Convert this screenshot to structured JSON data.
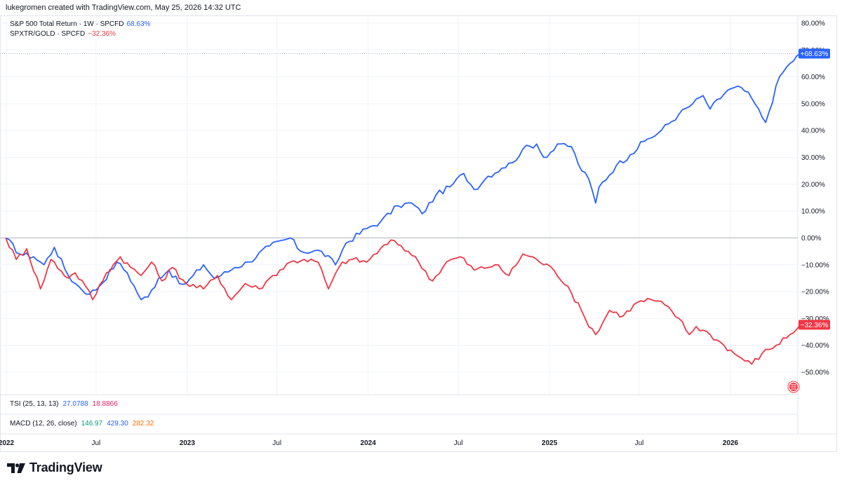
{
  "header": {
    "text": "lukegromen created with TradingView.com, May 25, 2026 14:32 UTC"
  },
  "legend": [
    {
      "label": "S&P 500 Total Return · 1W · SPCFD",
      "value": "68.63%",
      "color": "#2962ff"
    },
    {
      "label": "SPXTR/GOLD · SPCFD",
      "value": "−32.36%",
      "color": "#f23645"
    }
  ],
  "indicators": {
    "tsi": {
      "label": "TSI (25, 13, 13)",
      "value1": "27.0788",
      "value2": "18.8866",
      "color1": "#2962ff",
      "color2": "#e91e63"
    },
    "macd": {
      "label": "MACD (12, 26, close)",
      "value1": "146.97",
      "value2": "429.30",
      "value3": "282.32",
      "color1": "#089981",
      "color2": "#2962ff",
      "color3": "#ff6d00"
    }
  },
  "footer": {
    "brand": "TradingView",
    "logo_icon": "tradingview-logo-icon"
  },
  "price_tags": {
    "spx": "+68.63%",
    "ratio": "−32.36%"
  },
  "chart_data": {
    "type": "line",
    "ylim": [
      -60,
      80
    ],
    "y_ticks": [
      80,
      70,
      60,
      50,
      40,
      30,
      20,
      10,
      0,
      -10,
      -20,
      -30,
      -40,
      -50
    ],
    "y_tick_labels": [
      "80.00%",
      "70.00%",
      "60.00%",
      "50.00%",
      "40.00%",
      "30.00%",
      "20.00%",
      "10.00%",
      "0.00%",
      "−10.00%",
      "−20.00%",
      "−30.00%",
      "−40.00%",
      "−50.00%"
    ],
    "xlim": [
      "2022-01-01",
      "2026-06-15"
    ],
    "x_ticks": [
      "2022-01-01",
      "2022-07-01",
      "2023-01-01",
      "2023-07-01",
      "2024-01-01",
      "2024-07-01",
      "2025-01-01",
      "2025-07-01",
      "2026-01-01"
    ],
    "x_tick_labels": [
      "2022",
      "Jul",
      "2023",
      "Jul",
      "2024",
      "Jul",
      "2025",
      "Jul",
      "2026"
    ],
    "zero_line": true,
    "series": [
      {
        "name": "S&P 500 Total Return · 1W · SPCFD",
        "color": "#2962ff",
        "points": [
          [
            "2021-12-31",
            0
          ],
          [
            "2022-01-28",
            -6
          ],
          [
            "2022-02-25",
            -7
          ],
          [
            "2022-03-18",
            -10
          ],
          [
            "2022-04-08",
            -3.5
          ],
          [
            "2022-05-06",
            -14
          ],
          [
            "2022-05-20",
            -17
          ],
          [
            "2022-06-17",
            -21
          ],
          [
            "2022-07-08",
            -18
          ],
          [
            "2022-08-12",
            -9
          ],
          [
            "2022-09-02",
            -13
          ],
          [
            "2022-09-30",
            -23
          ],
          [
            "2022-10-14",
            -22
          ],
          [
            "2022-11-04",
            -15
          ],
          [
            "2022-11-25",
            -12
          ],
          [
            "2022-12-16",
            -17
          ],
          [
            "2022-12-30",
            -17
          ],
          [
            "2023-02-03",
            -10
          ],
          [
            "2023-02-24",
            -15
          ],
          [
            "2023-03-10",
            -14
          ],
          [
            "2023-04-07",
            -11
          ],
          [
            "2023-05-05",
            -9
          ],
          [
            "2023-06-16",
            -3
          ],
          [
            "2023-07-28",
            0
          ],
          [
            "2023-08-18",
            -5
          ],
          [
            "2023-09-29",
            -5
          ],
          [
            "2023-10-27",
            -10
          ],
          [
            "2023-11-17",
            -2
          ],
          [
            "2023-12-29",
            3.5
          ],
          [
            "2024-01-26",
            6
          ],
          [
            "2024-03-01",
            12
          ],
          [
            "2024-03-29",
            13
          ],
          [
            "2024-04-19",
            9
          ],
          [
            "2024-05-17",
            16
          ],
          [
            "2024-06-14",
            19
          ],
          [
            "2024-07-12",
            24
          ],
          [
            "2024-08-02",
            18
          ],
          [
            "2024-08-30",
            23
          ],
          [
            "2024-09-27",
            26
          ],
          [
            "2024-10-18",
            28
          ],
          [
            "2024-11-08",
            33
          ],
          [
            "2024-12-06",
            35
          ],
          [
            "2024-12-20",
            30
          ],
          [
            "2025-01-24",
            35
          ],
          [
            "2025-02-14",
            34
          ],
          [
            "2025-03-07",
            25
          ],
          [
            "2025-03-21",
            22
          ],
          [
            "2025-04-04",
            13
          ],
          [
            "2025-04-11",
            19
          ],
          [
            "2025-05-16",
            27
          ],
          [
            "2025-06-13",
            31
          ],
          [
            "2025-07-11",
            36
          ],
          [
            "2025-08-08",
            39
          ],
          [
            "2025-09-19",
            46
          ],
          [
            "2025-10-17",
            50
          ],
          [
            "2025-11-07",
            53
          ],
          [
            "2025-11-21",
            48
          ],
          [
            "2025-12-26",
            55
          ],
          [
            "2026-01-23",
            56
          ],
          [
            "2026-02-13",
            52
          ],
          [
            "2026-03-06",
            45
          ],
          [
            "2026-03-13",
            43
          ],
          [
            "2026-04-10",
            60
          ],
          [
            "2026-05-01",
            65
          ],
          [
            "2026-05-22",
            68.63
          ]
        ]
      },
      {
        "name": "SPXTR/GOLD · SPCFD",
        "color": "#f23645",
        "points": [
          [
            "2021-12-31",
            0
          ],
          [
            "2022-01-21",
            -8
          ],
          [
            "2022-02-11",
            -4
          ],
          [
            "2022-03-11",
            -19
          ],
          [
            "2022-04-01",
            -8
          ],
          [
            "2022-05-06",
            -15
          ],
          [
            "2022-05-20",
            -13
          ],
          [
            "2022-06-10",
            -18
          ],
          [
            "2022-06-24",
            -23
          ],
          [
            "2022-07-22",
            -13
          ],
          [
            "2022-08-19",
            -7
          ],
          [
            "2022-09-09",
            -11
          ],
          [
            "2022-09-30",
            -14
          ],
          [
            "2022-10-21",
            -9
          ],
          [
            "2022-11-11",
            -16
          ],
          [
            "2022-12-02",
            -11
          ],
          [
            "2022-12-30",
            -17
          ],
          [
            "2023-02-03",
            -19
          ],
          [
            "2023-03-03",
            -14
          ],
          [
            "2023-03-31",
            -23
          ],
          [
            "2023-04-28",
            -17
          ],
          [
            "2023-05-26",
            -19
          ],
          [
            "2023-06-23",
            -14
          ],
          [
            "2023-07-28",
            -9
          ],
          [
            "2023-08-25",
            -8
          ],
          [
            "2023-09-22",
            -9
          ],
          [
            "2023-10-13",
            -19
          ],
          [
            "2023-11-10",
            -9
          ],
          [
            "2023-12-01",
            -8
          ],
          [
            "2023-12-29",
            -9
          ],
          [
            "2024-01-26",
            -4
          ],
          [
            "2024-02-23",
            -1
          ],
          [
            "2024-03-22",
            -5
          ],
          [
            "2024-04-12",
            -9
          ],
          [
            "2024-05-10",
            -16
          ],
          [
            "2024-06-07",
            -9
          ],
          [
            "2024-07-05",
            -7
          ],
          [
            "2024-08-02",
            -12
          ],
          [
            "2024-09-13",
            -10
          ],
          [
            "2024-10-11",
            -14
          ],
          [
            "2024-11-08",
            -6
          ],
          [
            "2024-12-06",
            -8
          ],
          [
            "2025-01-10",
            -12
          ],
          [
            "2025-02-07",
            -18
          ],
          [
            "2025-03-14",
            -30
          ],
          [
            "2025-04-04",
            -36
          ],
          [
            "2025-05-02",
            -27
          ],
          [
            "2025-05-30",
            -29
          ],
          [
            "2025-06-27",
            -24
          ],
          [
            "2025-07-25",
            -23
          ],
          [
            "2025-08-22",
            -25
          ],
          [
            "2025-09-19",
            -30
          ],
          [
            "2025-10-10",
            -36
          ],
          [
            "2025-10-24",
            -33
          ],
          [
            "2025-11-21",
            -36
          ],
          [
            "2025-12-19",
            -40
          ],
          [
            "2026-01-16",
            -44
          ],
          [
            "2026-02-13",
            -47
          ],
          [
            "2026-03-06",
            -43
          ],
          [
            "2026-04-03",
            -40
          ],
          [
            "2026-05-01",
            -36
          ],
          [
            "2026-05-22",
            -32.36
          ]
        ]
      }
    ]
  }
}
